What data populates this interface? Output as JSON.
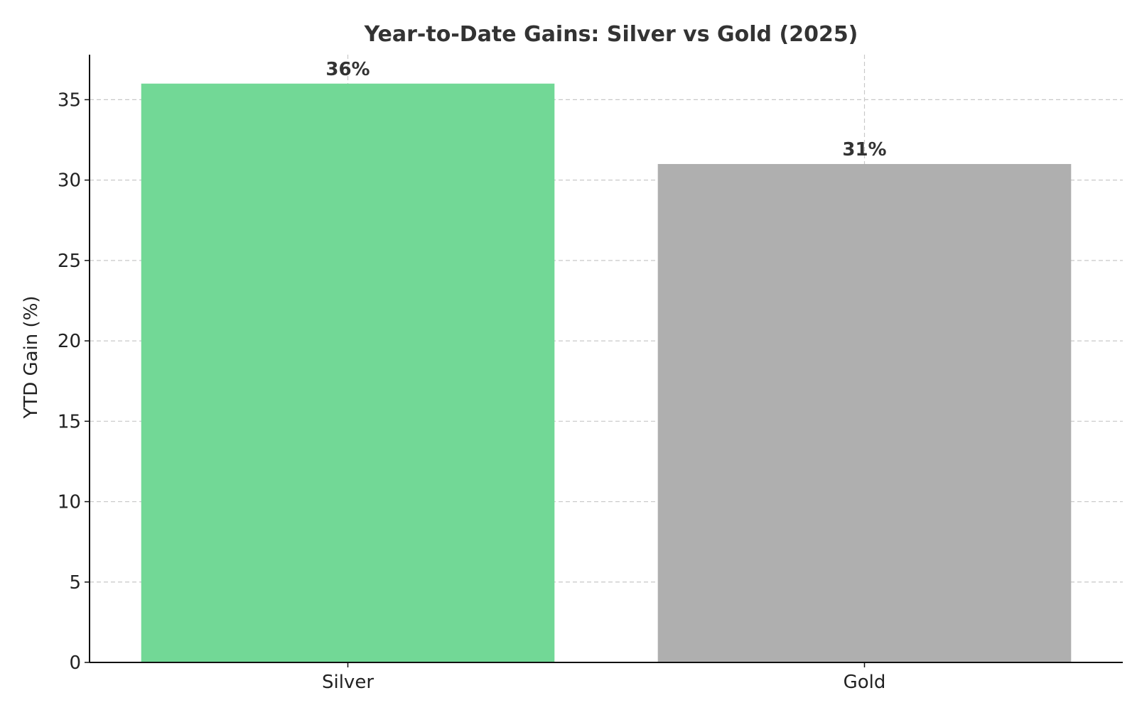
{
  "chart_data": {
    "type": "bar",
    "title": "Year-to-Date Gains: Silver vs Gold (2025)",
    "xlabel": "",
    "ylabel": "YTD Gain (%)",
    "categories": [
      "Silver",
      "Gold"
    ],
    "values": [
      36,
      31
    ],
    "data_labels": [
      "36%",
      "31%"
    ],
    "bar_colors": [
      "#72d896",
      "#afafaf"
    ],
    "ylim": [
      0,
      37.8
    ],
    "yticks": [
      0,
      5,
      10,
      15,
      20,
      25,
      30,
      35
    ],
    "grid": true
  }
}
